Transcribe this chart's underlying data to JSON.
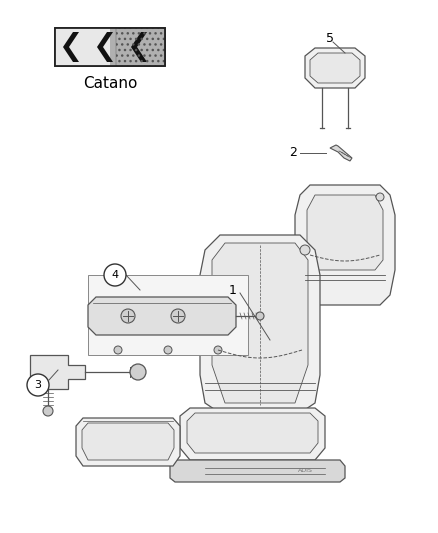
{
  "background_color": "#ffffff",
  "line_color": "#555555",
  "fabric_label": "Catano",
  "figsize": [
    4.38,
    5.33
  ],
  "dpi": 100
}
